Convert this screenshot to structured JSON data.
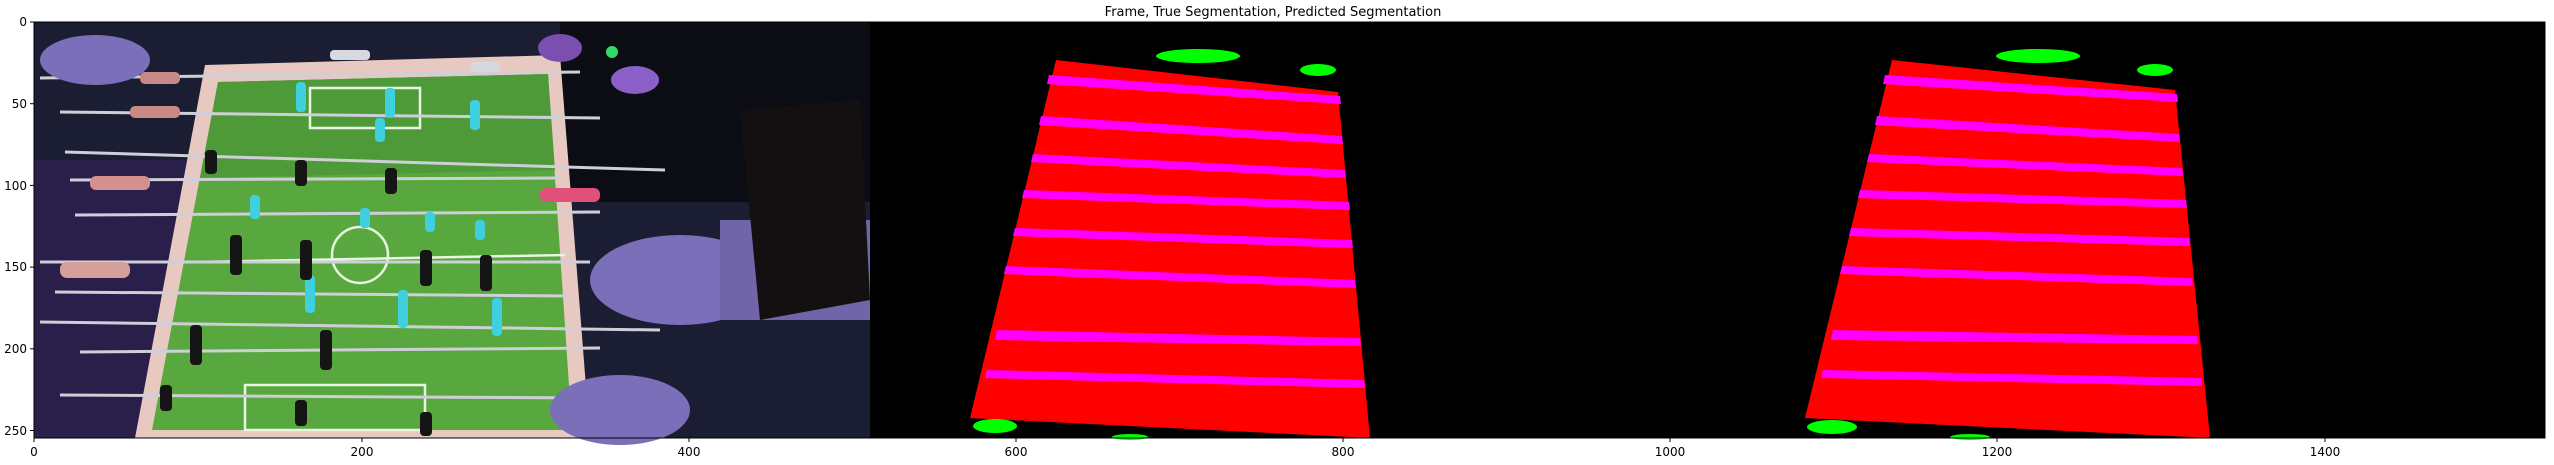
{
  "figure": {
    "title": "Frame, True Segmentation, Predicted Segmentation",
    "x_ticks": [
      "0",
      "200",
      "400",
      "600",
      "800",
      "1000",
      "1200",
      "1400"
    ],
    "y_ticks": [
      "0",
      "50",
      "100",
      "150",
      "200",
      "250"
    ]
  },
  "colors": {
    "table_surface": "#ff0000",
    "rod_stripe": "#ff00ff",
    "player_marker": "#00ff00",
    "background": "#000000",
    "field_green": "#58a83f",
    "photo_dark": "#1b1d33"
  },
  "panels": [
    {
      "id": "frame",
      "content": "photo of a foosball table with players' hands"
    },
    {
      "id": "true-segmentation",
      "content": "red table mask, magenta rod stripes, green goal markers"
    },
    {
      "id": "predicted-segmentation",
      "content": "red table mask, magenta rod stripes, green goal markers"
    }
  ]
}
